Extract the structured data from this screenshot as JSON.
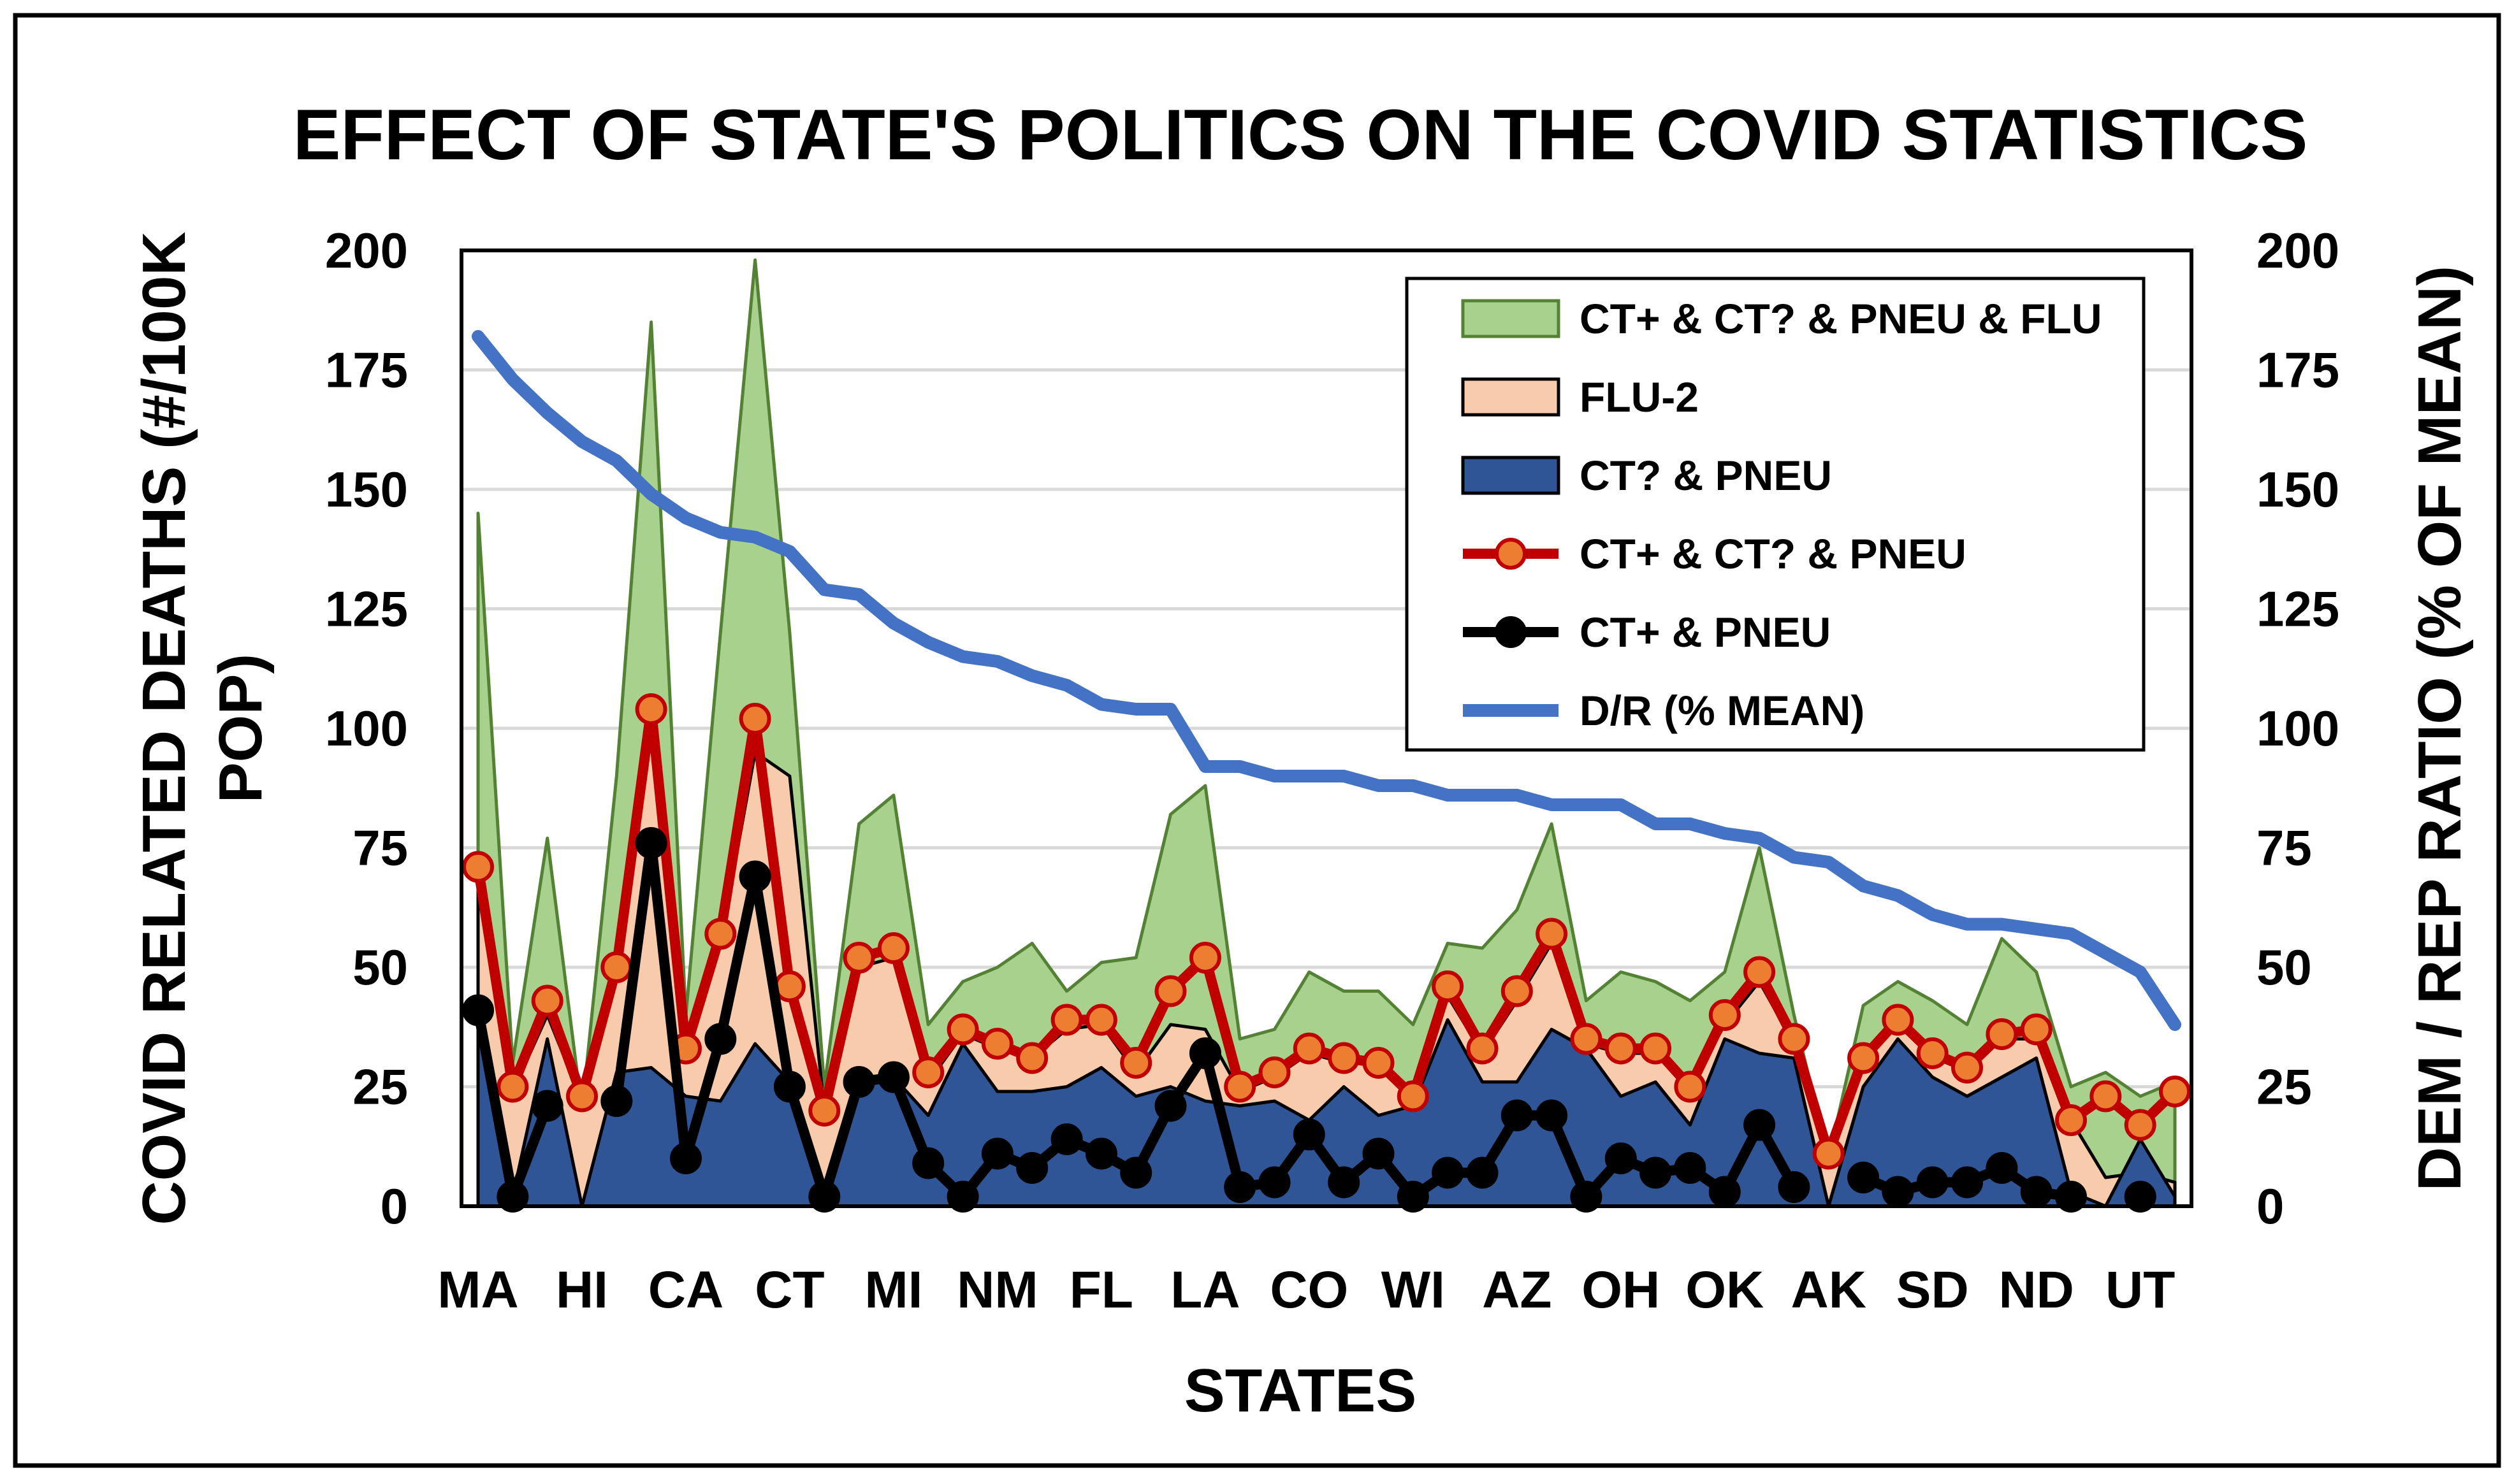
{
  "chart_data": {
    "type": "area",
    "title": "EFFECT OF STATE'S POLITICS ON THE COVID STATISTICS",
    "xlabel": "STATES",
    "ylabel": "COVID RELATED DEATHS (#/100K POP)",
    "y2label": "DEM / REP RATIO (% OF MEAN)",
    "ylim": [
      0,
      200
    ],
    "y2lim": [
      0,
      200
    ],
    "yticks": [
      "0",
      "25",
      "50",
      "75",
      "100",
      "125",
      "150",
      "175",
      "200"
    ],
    "y2ticks": [
      "0",
      "25",
      "50",
      "75",
      "100",
      "125",
      "150",
      "175",
      "200"
    ],
    "grid": true,
    "legend_position": "top-right",
    "x_tick_labels": [
      "MA",
      "HI",
      "CA",
      "CT",
      "MI",
      "NM",
      "FL",
      "LA",
      "CO",
      "WI",
      "AZ",
      "OH",
      "OK",
      "AK",
      "SD",
      "ND",
      "UT"
    ],
    "x_tick_positions": [
      0,
      3,
      6,
      9,
      12,
      15,
      18,
      21,
      24,
      27,
      30,
      33,
      36,
      39,
      42,
      45,
      48
    ],
    "n_points": 50,
    "series": [
      {
        "name": "CT+ & CT? & PNEU & FLU",
        "kind": "area",
        "color": "#a9d18e",
        "stroke": "#548235",
        "values": [
          145,
          30,
          77,
          20,
          90,
          185,
          40,
          120,
          198,
          120,
          25,
          80,
          86,
          38,
          47,
          50,
          55,
          45,
          51,
          52,
          82,
          88,
          35,
          37,
          49,
          45,
          45,
          38,
          55,
          54,
          62,
          80,
          43,
          49,
          47,
          43,
          49,
          75,
          40,
          10,
          42,
          47,
          43,
          38,
          56,
          49,
          25,
          28,
          23,
          26
        ]
      },
      {
        "name": "FLU-2",
        "kind": "area",
        "color": "#f8cbad",
        "stroke": "#000000",
        "values": [
          71,
          24,
          40,
          22,
          48,
          100,
          33,
          55,
          95,
          90,
          20,
          50,
          52,
          26,
          36,
          33,
          31,
          37,
          38,
          28,
          38,
          37,
          24,
          27,
          32,
          30,
          30,
          23,
          44,
          32,
          43,
          55,
          34,
          32,
          32,
          25,
          38,
          47,
          34,
          10,
          30,
          38,
          32,
          28,
          35,
          35,
          18,
          6,
          7,
          5
        ]
      },
      {
        "name": "CT? & PNEU",
        "kind": "area",
        "color": "#2f5597",
        "stroke": "#000000",
        "values": [
          40,
          2,
          35,
          0,
          28,
          29,
          23,
          22,
          34,
          26,
          2,
          25,
          27,
          19,
          34,
          24,
          24,
          25,
          29,
          23,
          25,
          22,
          21,
          22,
          18,
          25,
          19,
          21,
          39,
          26,
          26,
          37,
          33,
          23,
          26,
          17,
          35,
          32,
          31,
          0,
          25,
          35,
          27,
          23,
          27,
          31,
          3,
          0,
          14,
          2
        ]
      },
      {
        "name": "CT+ & CT? & PNEU",
        "kind": "line",
        "color": "#c00000",
        "marker": "#ed7d31",
        "values": [
          71,
          25,
          43,
          23,
          50,
          104,
          33,
          57,
          102,
          46,
          20,
          52,
          54,
          28,
          37,
          34,
          31,
          39,
          39,
          30,
          45,
          52,
          25,
          28,
          33,
          31,
          30,
          23,
          46,
          33,
          45,
          57,
          35,
          33,
          33,
          25,
          40,
          49,
          35,
          11,
          31,
          39,
          32,
          29,
          36,
          37,
          18,
          23,
          17,
          24
        ]
      },
      {
        "name": "CT+ & PNEU",
        "kind": "line",
        "color": "#000000",
        "marker": "#000000",
        "values": [
          41,
          2,
          21,
          null,
          22,
          76,
          10,
          35,
          69,
          25,
          2,
          26,
          27,
          9,
          2,
          11,
          8,
          14,
          11,
          7,
          21,
          32,
          4,
          5,
          15,
          5,
          11,
          2,
          7,
          7,
          19,
          19,
          2,
          10,
          7,
          8,
          3,
          17,
          4,
          null,
          6,
          3,
          5,
          5,
          8,
          3,
          2,
          null,
          2,
          null
        ]
      },
      {
        "name": "D/R (% MEAN)",
        "kind": "line",
        "axis": "right",
        "color": "#4472c4",
        "values": [
          182,
          173,
          166,
          160,
          156,
          149,
          144,
          141,
          140,
          137,
          129,
          128,
          122,
          118,
          115,
          114,
          111,
          109,
          105,
          104,
          104,
          92,
          92,
          90,
          90,
          90,
          88,
          88,
          86,
          86,
          86,
          84,
          84,
          84,
          80,
          80,
          78,
          77,
          73,
          72,
          67,
          65,
          61,
          59,
          59,
          58,
          57,
          53,
          49,
          38
        ]
      }
    ]
  }
}
